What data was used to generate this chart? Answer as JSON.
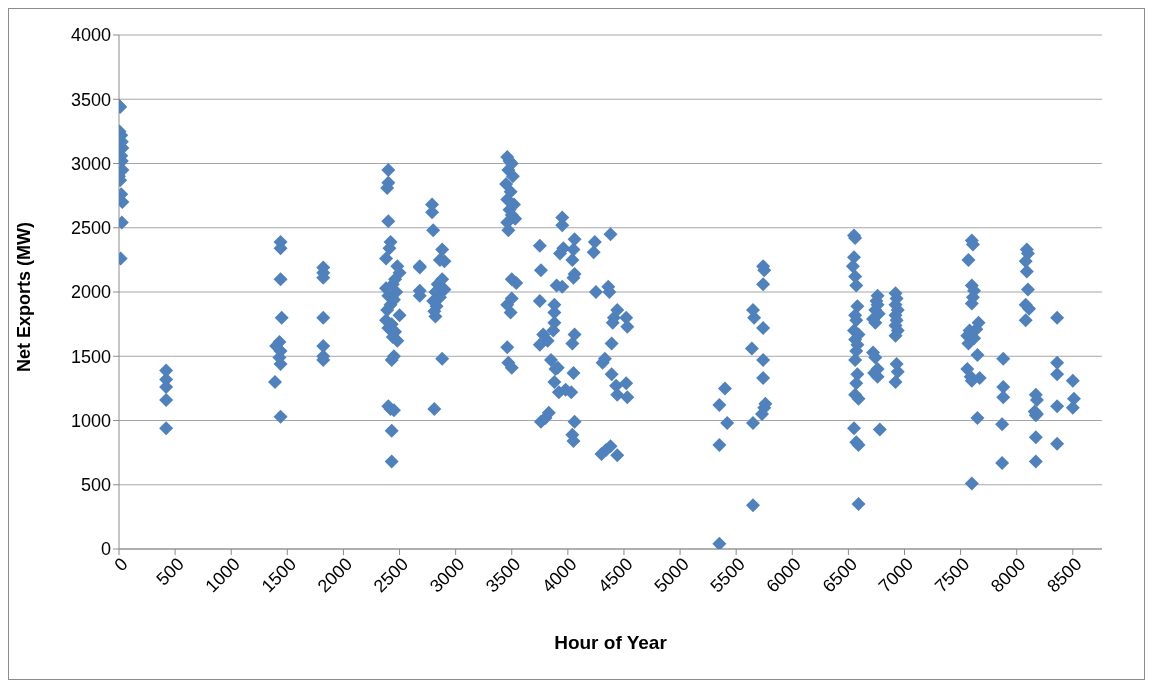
{
  "chart_data": {
    "type": "scatter",
    "xlabel": "Hour of Year",
    "ylabel": "Net Exports (MW)",
    "xlim": [
      0,
      8760
    ],
    "xticks": [
      0,
      500,
      1000,
      1500,
      2000,
      2500,
      3000,
      3500,
      4000,
      4500,
      5000,
      5500,
      6000,
      6500,
      7000,
      7500,
      8000,
      8500
    ],
    "ylim": [
      0,
      4000
    ],
    "yticks": [
      0,
      500,
      1000,
      1500,
      2000,
      2500,
      3000,
      3500,
      4000
    ],
    "grid": "y",
    "legend": false,
    "marker": "diamond",
    "series": [
      {
        "color": "#4f81bd",
        "x": [
          0,
          10,
          5,
          20,
          25,
          30,
          20,
          25,
          30,
          0,
          10,
          20,
          30,
          25,
          15,
          420,
          420,
          420,
          420,
          420,
          1390,
          1400,
          1430,
          1440,
          1430,
          1440,
          1440,
          1440,
          1440,
          1450,
          1440,
          1820,
          1820,
          1820,
          1820,
          1820,
          1820,
          1820,
          2400,
          2400,
          2390,
          2400,
          2420,
          2410,
          2380,
          2480,
          2500,
          2460,
          2440,
          2380,
          2470,
          2400,
          2450,
          2420,
          2390,
          2500,
          2380,
          2430,
          2400,
          2460,
          2440,
          2480,
          2450,
          2430,
          2400,
          2420,
          2450,
          2430,
          2430,
          2680,
          2680,
          2680,
          2680,
          2790,
          2790,
          2800,
          2880,
          2860,
          2900,
          2880,
          2840,
          2900,
          2820,
          2860,
          2800,
          2830,
          2810,
          2820,
          2880,
          2810,
          3460,
          3480,
          3500,
          3470,
          3510,
          3450,
          3490,
          3460,
          3520,
          3480,
          3500,
          3530,
          3460,
          3470,
          3500,
          3540,
          3500,
          3460,
          3490,
          3460,
          3470,
          3500,
          3750,
          3760,
          3750,
          3780,
          3820,
          3750,
          3800,
          3760,
          3830,
          3880,
          3850,
          3890,
          3870,
          3880,
          3880,
          3880,
          3900,
          3950,
          3930,
          3960,
          3950,
          3950,
          3920,
          3910,
          3980,
          4060,
          4050,
          4040,
          4060,
          4050,
          4060,
          4040,
          4050,
          4030,
          4060,
          4040,
          4050,
          4240,
          4230,
          4250,
          4380,
          4360,
          4370,
          4410,
          4400,
          4390,
          4330,
          4310,
          4390,
          4430,
          4440,
          4380,
          4340,
          4300,
          4440,
          4440,
          4520,
          4530,
          4520,
          4530,
          5350,
          5350,
          5350,
          5400,
          5420,
          5650,
          5660,
          5640,
          5650,
          5650,
          5740,
          5750,
          5740,
          5740,
          5740,
          5740,
          5760,
          5750,
          5730,
          6550,
          6560,
          6550,
          6540,
          6560,
          6570,
          6580,
          6560,
          6570,
          6550,
          6590,
          6560,
          6580,
          6570,
          6560,
          6580,
          6570,
          6560,
          6590,
          6550,
          6570,
          6590,
          6590,
          6760,
          6750,
          6760,
          6740,
          6770,
          6720,
          6740,
          6720,
          6740,
          6760,
          6730,
          6760,
          6780,
          6920,
          6930,
          6920,
          6940,
          6920,
          6930,
          6920,
          6940,
          6920,
          6930,
          6940,
          6920,
          7600,
          7610,
          7570,
          7600,
          7620,
          7610,
          7600,
          7580,
          7560,
          7620,
          7570,
          7560,
          7590,
          7600,
          7600,
          7660,
          7640,
          7650,
          7670,
          7650,
          7880,
          7880,
          7880,
          7870,
          7870,
          8090,
          8100,
          8080,
          8090,
          8100,
          8080,
          8110,
          8080,
          8170,
          8180,
          8160,
          8170,
          8180,
          8170,
          8170,
          8360,
          8360,
          8360,
          8360,
          8360,
          8500,
          8510,
          8500
        ],
        "values": [
          3450,
          3440,
          3250,
          3220,
          3170,
          3120,
          3060,
          3020,
          2950,
          2900,
          2870,
          2760,
          2700,
          2540,
          2260,
          1390,
          1320,
          1260,
          1160,
          940,
          1300,
          1580,
          1610,
          1540,
          1490,
          1440,
          2390,
          2340,
          2100,
          1800,
          1030,
          2190,
          2150,
          2110,
          1800,
          1580,
          1500,
          1470,
          2950,
          2850,
          2810,
          2550,
          2390,
          2340,
          2260,
          2200,
          2150,
          2100,
          2060,
          2030,
          2000,
          1970,
          1940,
          1900,
          1860,
          1820,
          1780,
          1750,
          1720,
          1690,
          1650,
          1620,
          1500,
          1470,
          1110,
          1090,
          1080,
          920,
          680,
          2200,
          2190,
          2010,
          1970,
          2680,
          2620,
          2480,
          2330,
          2250,
          2240,
          2100,
          2060,
          2020,
          2000,
          1960,
          1930,
          1890,
          1850,
          1810,
          1480,
          1090,
          3050,
          3020,
          3000,
          2950,
          2900,
          2840,
          2780,
          2720,
          2680,
          2640,
          2600,
          2570,
          2540,
          2480,
          2100,
          2070,
          1950,
          1900,
          1840,
          1570,
          1450,
          1410,
          2360,
          2170,
          1930,
          1670,
          1620,
          1590,
          1020,
          990,
          1060,
          1300,
          1470,
          1400,
          1700,
          1760,
          1840,
          1900,
          2050,
          2040,
          2300,
          2340,
          2520,
          2580,
          1220,
          1410,
          1240,
          2410,
          2330,
          2250,
          2140,
          2110,
          1670,
          1600,
          1370,
          1220,
          990,
          890,
          840,
          2390,
          2310,
          2000,
          2450,
          2040,
          2000,
          1800,
          1760,
          1600,
          1480,
          1450,
          1360,
          1270,
          1200,
          800,
          770,
          740,
          730,
          1860,
          1800,
          1730,
          1290,
          1180,
          1120,
          810,
          40,
          1250,
          980,
          1860,
          1800,
          1560,
          980,
          340,
          2200,
          2170,
          2060,
          1720,
          1470,
          1330,
          1130,
          1100,
          1050,
          2440,
          2420,
          2270,
          2200,
          2120,
          2050,
          1890,
          1820,
          1780,
          1700,
          1670,
          1630,
          1590,
          1540,
          1470,
          1360,
          1290,
          1200,
          1170,
          940,
          830,
          810,
          350,
          1970,
          1930,
          1900,
          1860,
          1830,
          1790,
          1760,
          1530,
          1490,
          1400,
          1370,
          1340,
          930,
          1990,
          1950,
          1900,
          1860,
          1820,
          1780,
          1740,
          1700,
          1660,
          1440,
          1380,
          1300,
          2400,
          2370,
          2250,
          2050,
          2010,
          1960,
          1910,
          1700,
          1660,
          1640,
          1600,
          1400,
          1340,
          1310,
          510,
          1760,
          1710,
          1510,
          1330,
          1020,
          1480,
          1260,
          1180,
          970,
          670,
          2330,
          2300,
          2240,
          2160,
          2020,
          1900,
          1870,
          1780,
          1200,
          1160,
          1070,
          1040,
          1050,
          870,
          680,
          1800,
          1450,
          1360,
          1110,
          820,
          1310,
          1170,
          1100
        ]
      }
    ]
  }
}
